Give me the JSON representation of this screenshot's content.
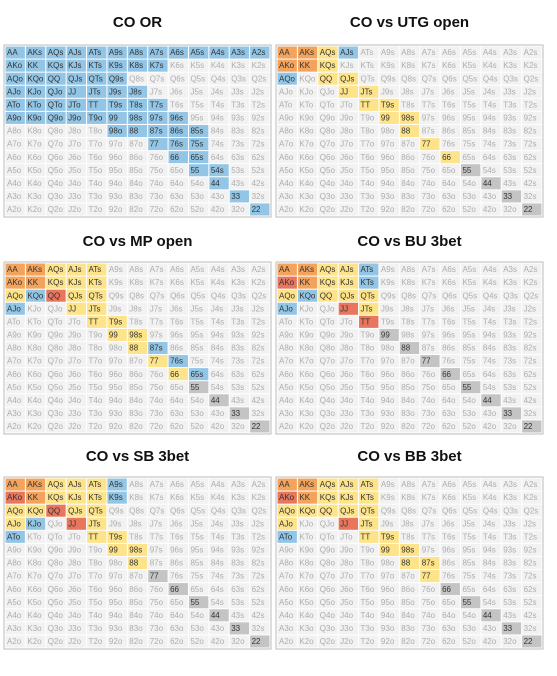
{
  "hands": [
    [
      "AA",
      "AKs",
      "AQs",
      "AJs",
      "ATs",
      "A9s",
      "A8s",
      "A7s",
      "A6s",
      "A5s",
      "A4s",
      "A3s",
      "A2s"
    ],
    [
      "AKo",
      "KK",
      "KQs",
      "KJs",
      "KTs",
      "K9s",
      "K8s",
      "K7s",
      "K6s",
      "K5s",
      "K4s",
      "K3s",
      "K2s"
    ],
    [
      "AQo",
      "KQo",
      "QQ",
      "QJs",
      "QTs",
      "Q9s",
      "Q8s",
      "Q7s",
      "Q6s",
      "Q5s",
      "Q4s",
      "Q3s",
      "Q2s"
    ],
    [
      "AJo",
      "KJo",
      "QJo",
      "JJ",
      "JTs",
      "J9s",
      "J8s",
      "J7s",
      "J6s",
      "J5s",
      "J4s",
      "J3s",
      "J2s"
    ],
    [
      "ATo",
      "KTo",
      "QTo",
      "JTo",
      "TT",
      "T9s",
      "T8s",
      "T7s",
      "T6s",
      "T5s",
      "T4s",
      "T3s",
      "T2s"
    ],
    [
      "A9o",
      "K9o",
      "Q9o",
      "J9o",
      "T9o",
      "99",
      "98s",
      "97s",
      "96s",
      "95s",
      "94s",
      "93s",
      "92s"
    ],
    [
      "A8o",
      "K8o",
      "Q8o",
      "J8o",
      "T8o",
      "98o",
      "88",
      "87s",
      "86s",
      "85s",
      "84s",
      "83s",
      "82s"
    ],
    [
      "A7o",
      "K7o",
      "Q7o",
      "J7o",
      "T7o",
      "97o",
      "87o",
      "77",
      "76s",
      "75s",
      "74s",
      "73s",
      "72s"
    ],
    [
      "A6o",
      "K6o",
      "Q6o",
      "J6o",
      "T6o",
      "96o",
      "86o",
      "76o",
      "66",
      "65s",
      "64s",
      "63s",
      "62s"
    ],
    [
      "A5o",
      "K5o",
      "Q5o",
      "J5o",
      "T5o",
      "95o",
      "85o",
      "75o",
      "65o",
      "55",
      "54s",
      "53s",
      "52s"
    ],
    [
      "A4o",
      "K4o",
      "Q4o",
      "J4o",
      "T4o",
      "94o",
      "84o",
      "74o",
      "64o",
      "54o",
      "44",
      "43s",
      "42s"
    ],
    [
      "A3o",
      "K3o",
      "Q3o",
      "J3o",
      "T3o",
      "93o",
      "83o",
      "73o",
      "63o",
      "53o",
      "43o",
      "33",
      "32s"
    ],
    [
      "A2o",
      "K2o",
      "Q2o",
      "J2o",
      "T2o",
      "92o",
      "82o",
      "72o",
      "62o",
      "52o",
      "42o",
      "32o",
      "22"
    ]
  ],
  "palette": {
    "o": "#f4a35c",
    "r": "#e8765e",
    "y": "#fde38a",
    "b": "#93c6e6",
    "g": "#c4c4c4",
    "w": "#f2f2f2"
  },
  "grids": [
    {
      "title": "CO OR",
      "fills": [
        "bbbbbbbbbbbbb",
        "bbbbbbbbwwwww",
        "bbbbbbwwwwwww",
        "bbbbbbbwwwwww",
        "bbbbbbbbwwwww",
        "bbbbbbbbbwwww",
        "wwwwwbbbbbwww",
        "wwwwwwwbbbwww",
        "wwwwwwwwbbwww",
        "wwwwwwwwwbbww",
        "wwwwwwwwwwbww",
        "wwwwwwwwwwwbw",
        "wwwwwwwwwwwwb"
      ]
    },
    {
      "title": "CO vs UTG open",
      "fills": [
        "ooybwwwwwwwww",
        "ooywwwwwwwwww",
        "bwyywwwwwwwww",
        "wwwyywwwwwwww",
        "wwwwyywwwwwww",
        "wwwwwyywwwwww",
        "wwwwwwywwwwww",
        "wwwwwwwywwwww",
        "wwwwwwwwywwww",
        "wwwwwwwwwgwww",
        "wwwwwwwwwwgww",
        "wwwwwwwwwwwgw",
        "wwwwwwwwwwwwg"
      ]
    },
    {
      "title": "CO vs MP open",
      "fills": [
        "ooyyywwwwwwww",
        "ooyyywwwwwwww",
        "ybryywwwwwwww",
        "bwwyywwwwwwww",
        "wwwwyywwwwwww",
        "wwwwwyywwwwww",
        "wwwwwwybwwwww",
        "wwwwwwwybwwww",
        "wwwwwwwwybwww",
        "wwwwwwwwwgwww",
        "wwwwwwwwwwgww",
        "wwwwwwwwwwwgw",
        "wwwwwwwwwwwwg"
      ]
    },
    {
      "title": "CO vs BU 3bet",
      "fills": [
        "ooyybwwwwwwww",
        "royybwwwwwwww",
        "ybyyywwwwwwww",
        "bwwrywwwwwwww",
        "wwwwrwwwwwwww",
        "wwwwwgwwwwwww",
        "wwwwwwgwwwwww",
        "wwwwwwwgwwwww",
        "wwwwwwwwgwwww",
        "wwwwwwwwwgwww",
        "wwwwwwwwwwgww",
        "wwwwwwwwwwwgw",
        "wwwwwwwwwwwwg"
      ]
    },
    {
      "title": "CO vs SB 3bet",
      "fills": [
        "ooyyybwwwwwww",
        "royyybwwwwwww",
        "yyryywwwwwwww",
        "ybwrywwwwwwww",
        "bwwwyywwwwwww",
        "wwwwwyywwwwww",
        "wwwwwwywwwwww",
        "wwwwwwwgwwwww",
        "wwwwwwwwgwwww",
        "wwwwwwwwwgwww",
        "wwwwwwwwwwgww",
        "wwwwwwwwwwwgw",
        "wwwwwwwwwwwwg"
      ]
    },
    {
      "title": "CO vs BB 3bet",
      "fills": [
        "ooyyywwwwwwww",
        "royyywwwwwwww",
        "yyyyywwwwwwww",
        "ywwrywwwwwwww",
        "bwwwyywwwwwww",
        "wwwwwyywwwwww",
        "wwwwwwyywwwww",
        "wwwwwwwywwwww",
        "wwwwwwwwgwwww",
        "wwwwwwwwwgwww",
        "wwwwwwwwwwgww",
        "wwwwwwwwwwwgw",
        "wwwwwwwwwwwwg"
      ]
    }
  ]
}
